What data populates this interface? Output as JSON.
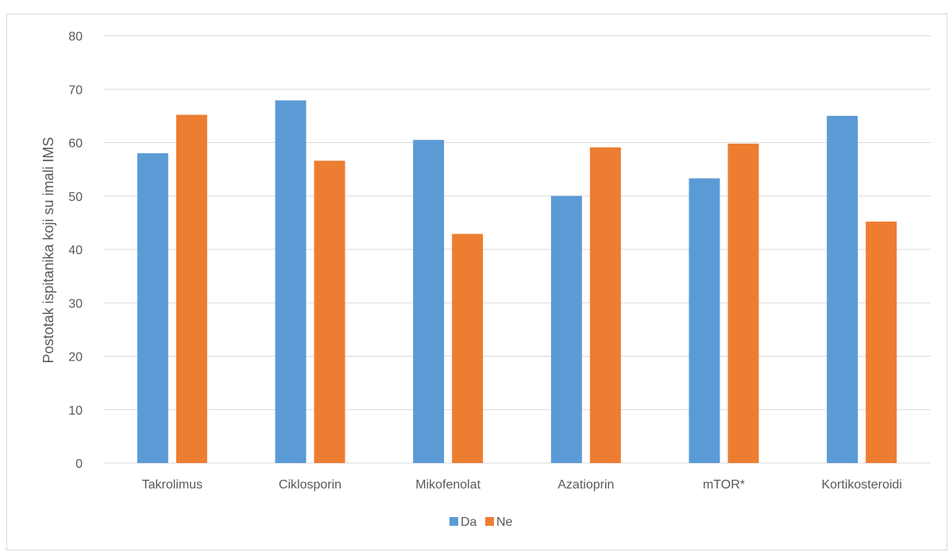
{
  "chart_data": {
    "type": "bar",
    "categories": [
      "Takrolimus",
      "Ciklosporin",
      "Mikofenolat",
      "Azatioprin",
      "mTOR*",
      "Kortikosteroidi"
    ],
    "series": [
      {
        "name": "Da",
        "color": "#5b9bd5",
        "values": [
          58.0,
          67.9,
          60.5,
          50.0,
          53.3,
          65.0
        ]
      },
      {
        "name": "Ne",
        "color": "#ed7d31",
        "values": [
          65.2,
          56.6,
          42.9,
          59.1,
          59.8,
          45.2
        ]
      }
    ],
    "ylabel": "Postotak ispitanika koji su imali IMS",
    "yticks": [
      "0",
      "10",
      "20",
      "30",
      "40",
      "50",
      "60",
      "70",
      "80"
    ],
    "ylim": [
      0,
      80
    ],
    "grid": true,
    "legend": "bottom-center"
  }
}
